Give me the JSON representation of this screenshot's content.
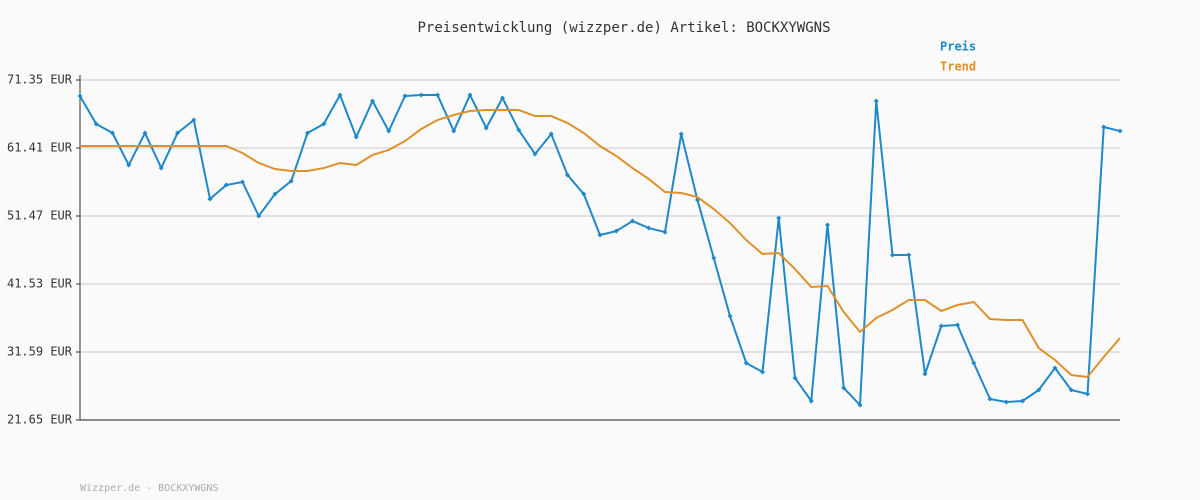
{
  "chart_data": {
    "type": "line",
    "title": "Preisentwicklung (wizzper.de) Artikel: BOCKXYWGNS",
    "footer": "Wizzper.de - BOCKXYWGNS",
    "ylim": [
      21.65,
      71.35
    ],
    "yticks": [
      {
        "value": 21.65,
        "label": "21.65 EUR"
      },
      {
        "value": 31.59,
        "label": "31.59 EUR"
      },
      {
        "value": 41.53,
        "label": "41.53 EUR"
      },
      {
        "value": 51.47,
        "label": "51.47 EUR"
      },
      {
        "value": 61.41,
        "label": "61.41 EUR"
      },
      {
        "value": 71.35,
        "label": "71.35 EUR"
      }
    ],
    "grid": true,
    "series": [
      {
        "name": "Preis",
        "color": "#1f88c8",
        "markers": true,
        "values": [
          69.01,
          64.92,
          63.6,
          58.92,
          63.6,
          58.48,
          63.6,
          65.5,
          53.95,
          56.0,
          56.44,
          51.47,
          54.68,
          56.58,
          63.6,
          64.92,
          69.16,
          63.01,
          68.28,
          63.89,
          69.01,
          69.16,
          69.16,
          63.89,
          69.16,
          64.33,
          68.72,
          64.04,
          60.53,
          63.45,
          57.46,
          54.68,
          48.69,
          49.27,
          50.73,
          49.71,
          49.12,
          63.45,
          53.8,
          45.33,
          36.85,
          29.98,
          28.67,
          51.18,
          27.79,
          24.43,
          50.15,
          26.33,
          23.84,
          68.28,
          45.77,
          45.77,
          28.37,
          35.39,
          35.53,
          29.98,
          24.72,
          24.28,
          24.43,
          26.04,
          29.25,
          26.04,
          25.45,
          64.48,
          63.89
        ]
      },
      {
        "name": "Trend",
        "color": "#e0902a",
        "markers": false,
        "values": [
          61.7,
          61.7,
          61.7,
          61.7,
          61.7,
          61.7,
          61.7,
          61.7,
          61.7,
          61.7,
          60.68,
          59.22,
          58.34,
          58.05,
          58.05,
          58.48,
          59.22,
          58.92,
          60.39,
          61.12,
          62.43,
          64.19,
          65.5,
          66.23,
          66.82,
          66.96,
          66.96,
          66.96,
          66.08,
          66.08,
          65.06,
          63.6,
          61.7,
          60.24,
          58.48,
          56.88,
          54.98,
          54.83,
          54.24,
          52.49,
          50.44,
          47.95,
          45.91,
          46.06,
          43.72,
          41.09,
          41.24,
          37.44,
          34.52,
          36.56,
          37.73,
          39.19,
          39.19,
          37.59,
          38.46,
          38.9,
          36.41,
          36.27,
          36.27,
          32.17,
          30.42,
          28.23,
          27.94,
          30.86,
          33.63
        ]
      }
    ]
  }
}
